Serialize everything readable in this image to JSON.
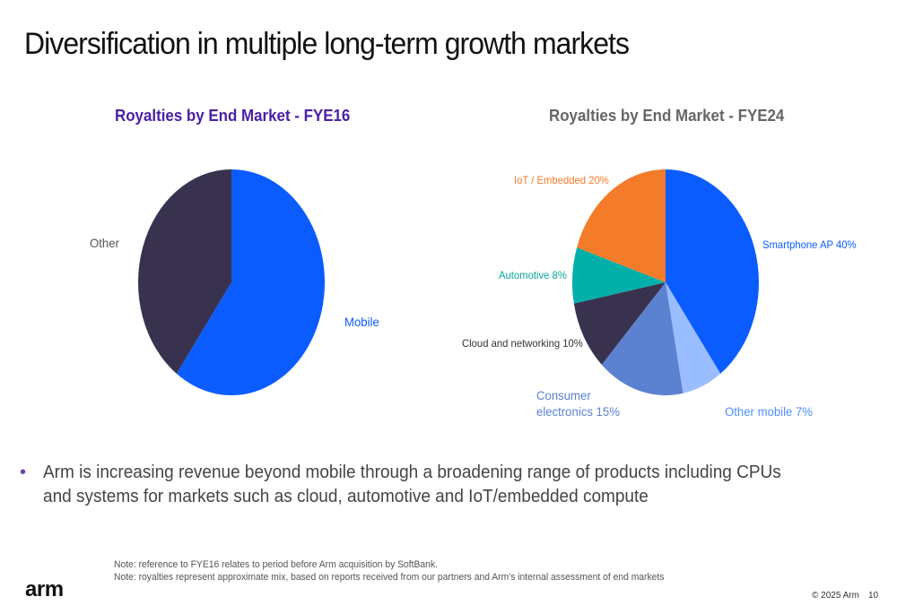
{
  "slide": {
    "title": "Diversification in multiple long-term growth markets",
    "bullet": "Arm is increasing revenue beyond mobile through a broadening range of products including CPUs and systems for markets such as cloud, automotive and IoT/embedded compute",
    "notes": [
      "Note: reference to FYE16 relates to period before Arm acquisition by SoftBank.",
      "Note: royalties represent approximate mix, based on reports received from our partners and Arm's internal assessment of end markets"
    ],
    "logo": "arm",
    "copyright": "© 2025 Arm",
    "page_number": "10"
  },
  "colors": {
    "title_fye16": "#4a1fa6",
    "title_fye24": "#666666"
  },
  "chart_data": [
    {
      "type": "pie",
      "title": "Royalties by End Market - FYE16",
      "slices": [
        {
          "label": "Mobile",
          "value": 60,
          "color": "#0a5cff",
          "label_color": "#0a5cff"
        },
        {
          "label": "Other",
          "value": 40,
          "color": "#39324f",
          "label_color": "#555555"
        }
      ]
    },
    {
      "type": "pie",
      "title": "Royalties by End Market - FYE24",
      "slices": [
        {
          "label": "Smartphone AP 40%",
          "value": 40,
          "color": "#0a5cff",
          "label_color": "#0a5cff"
        },
        {
          "label": "Other mobile 7%",
          "value": 7,
          "color": "#99bdff",
          "label_color": "#4f8fff"
        },
        {
          "label": "Consumer\nelectronics 15%",
          "value": 15,
          "color": "#5b82d0",
          "label_color": "#5b82d0"
        },
        {
          "label": "Cloud and networking 10%",
          "value": 10,
          "color": "#39324f",
          "label_color": "#333333"
        },
        {
          "label": "Automotive 8%",
          "value": 8,
          "color": "#00b0a8",
          "label_color": "#0aa6a0"
        },
        {
          "label": "IoT / Embedded 20%",
          "value": 20,
          "color": "#f47b2a",
          "label_color": "#f47b2a"
        }
      ]
    }
  ]
}
